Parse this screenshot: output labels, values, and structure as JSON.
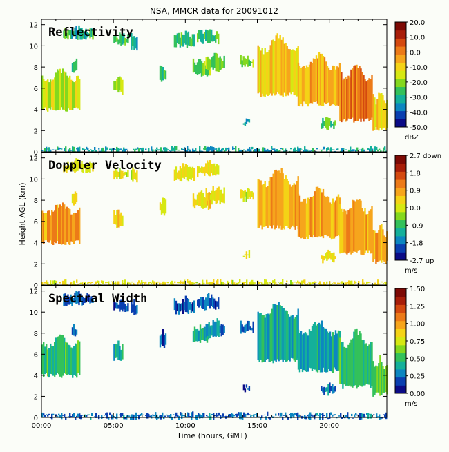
{
  "title": "NSA, MMCR data for 20091012",
  "xlabel": "Time (hours, GMT)",
  "ylabel": "Height AGL (km)",
  "x_ticks": [
    "00:00",
    "05:00",
    "10:00",
    "15:00",
    "20:00"
  ],
  "panels": [
    {
      "title": "Reflectivity",
      "colorbar_ticks": [
        "20.0",
        "10.0",
        "0.0",
        "-10.0",
        "-20.0",
        "-30.0",
        "-40.0",
        "-50.0"
      ],
      "colorbar_unit": "dBZ",
      "palette": [
        "#0b0b86",
        "#0a3fb0",
        "#0c86c0",
        "#14b09a",
        "#33c15a",
        "#84d81e",
        "#d6e812",
        "#f4d316",
        "#f6a51c",
        "#ec7a18",
        "#d4490f",
        "#a81e09",
        "#7d0a05"
      ]
    },
    {
      "title": "Doppler Velocity",
      "colorbar_ticks": [
        "2.7 down",
        "1.8",
        "0.9",
        "0.0",
        "-0.9",
        "-1.8",
        "-2.7 up"
      ],
      "colorbar_unit": "m/s",
      "palette": [
        "#0b0b86",
        "#0a3fb0",
        "#0c86c0",
        "#14b09a",
        "#33c15a",
        "#84d81e",
        "#d6e812",
        "#f4d316",
        "#f6a51c",
        "#ec7a18",
        "#d4490f",
        "#a81e09",
        "#7d0a05"
      ]
    },
    {
      "title": "Spectral Width",
      "colorbar_ticks": [
        "1.50",
        "1.25",
        "1.00",
        "0.75",
        "0.50",
        "0.25",
        "0.00"
      ],
      "colorbar_unit": "m/s",
      "palette": [
        "#0b0b86",
        "#0a3fb0",
        "#0c86c0",
        "#14b09a",
        "#33c15a",
        "#84d81e",
        "#d6e812",
        "#f4d316",
        "#f6a51c",
        "#ec7a18",
        "#d4490f",
        "#a81e09",
        "#7d0a05"
      ]
    }
  ],
  "chart_data": {
    "type": "heatmap",
    "title": "NSA, MMCR data for 20091012",
    "xlabel": "Time (hours, GMT)",
    "ylabel": "Height AGL (km)",
    "xlim": [
      0,
      24
    ],
    "ylim": [
      0,
      12.5
    ],
    "y_ticks": [
      0,
      2,
      4,
      6,
      8,
      10,
      12
    ],
    "grid": false,
    "cloud_regions": [
      {
        "t_start": 0.0,
        "t_end": 2.6,
        "z_bottom": 4.0,
        "z_top": 7.2,
        "refl_dbz": -15,
        "vel_ms": 1.0,
        "width_ms": 0.4
      },
      {
        "t_start": 1.5,
        "t_end": 3.6,
        "z_bottom": 10.8,
        "z_top": 11.6,
        "refl_dbz": -25,
        "vel_ms": 0.2,
        "width_ms": 0.1
      },
      {
        "t_start": 2.1,
        "t_end": 2.4,
        "z_bottom": 7.7,
        "z_top": 8.6,
        "refl_dbz": -22,
        "vel_ms": 0.2,
        "width_ms": 0.1
      },
      {
        "t_start": 5.0,
        "t_end": 5.6,
        "z_bottom": 5.6,
        "z_top": 6.9,
        "refl_dbz": -18,
        "vel_ms": 0.3,
        "width_ms": 0.3
      },
      {
        "t_start": 5.0,
        "t_end": 6.0,
        "z_bottom": 10.2,
        "z_top": 10.9,
        "refl_dbz": -20,
        "vel_ms": 0.2,
        "width_ms": 0.1
      },
      {
        "t_start": 6.2,
        "t_end": 6.6,
        "z_bottom": 9.8,
        "z_top": 11.0,
        "refl_dbz": -26,
        "vel_ms": 0.1,
        "width_ms": 0.1
      },
      {
        "t_start": 8.2,
        "t_end": 8.6,
        "z_bottom": 6.8,
        "z_top": 8.0,
        "refl_dbz": -22,
        "vel_ms": 0.2,
        "width_ms": 0.1
      },
      {
        "t_start": 9.2,
        "t_end": 10.6,
        "z_bottom": 10.0,
        "z_top": 11.1,
        "refl_dbz": -24,
        "vel_ms": 0.2,
        "width_ms": 0.1
      },
      {
        "t_start": 10.8,
        "t_end": 12.3,
        "z_bottom": 10.4,
        "z_top": 11.4,
        "refl_dbz": -24,
        "vel_ms": 0.2,
        "width_ms": 0.1
      },
      {
        "t_start": 10.5,
        "t_end": 11.7,
        "z_bottom": 7.3,
        "z_top": 8.5,
        "refl_dbz": -18,
        "vel_ms": 0.4,
        "width_ms": 0.3
      },
      {
        "t_start": 11.4,
        "t_end": 12.7,
        "z_bottom": 7.8,
        "z_top": 9.0,
        "refl_dbz": -18,
        "vel_ms": 0.3,
        "width_ms": 0.2
      },
      {
        "t_start": 13.8,
        "t_end": 14.7,
        "z_bottom": 8.1,
        "z_top": 8.9,
        "refl_dbz": -20,
        "vel_ms": 0.2,
        "width_ms": 0.1
      },
      {
        "t_start": 15.0,
        "t_end": 17.8,
        "z_bottom": 5.4,
        "z_top": 10.2,
        "refl_dbz": -8,
        "vel_ms": 0.8,
        "width_ms": 0.3
      },
      {
        "t_start": 17.8,
        "t_end": 20.7,
        "z_bottom": 4.5,
        "z_top": 8.5,
        "refl_dbz": -4,
        "vel_ms": 0.9,
        "width_ms": 0.3
      },
      {
        "t_start": 20.7,
        "t_end": 23.0,
        "z_bottom": 3.0,
        "z_top": 7.5,
        "refl_dbz": 2,
        "vel_ms": 1.0,
        "width_ms": 0.4
      },
      {
        "t_start": 23.0,
        "t_end": 24.0,
        "z_bottom": 2.2,
        "z_top": 5.2,
        "refl_dbz": -8,
        "vel_ms": 0.8,
        "width_ms": 0.5
      },
      {
        "t_start": 19.4,
        "t_end": 20.4,
        "z_bottom": 2.3,
        "z_top": 3.0,
        "refl_dbz": -22,
        "vel_ms": 0.3,
        "width_ms": 0.2
      },
      {
        "t_start": 14.0,
        "t_end": 14.4,
        "z_bottom": 2.6,
        "z_top": 3.0,
        "refl_dbz": -30,
        "vel_ms": 0.1,
        "width_ms": 0.1
      },
      {
        "t_start": 0.0,
        "t_end": 24.0,
        "z_bottom": 0.0,
        "z_top": 0.25,
        "refl_dbz": -30,
        "vel_ms": 0.2,
        "width_ms": 0.15
      }
    ]
  }
}
